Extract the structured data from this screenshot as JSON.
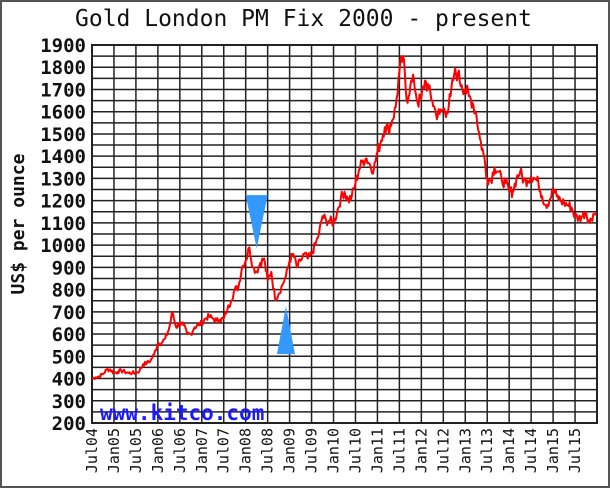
{
  "chart_data": {
    "type": "line",
    "title": "Gold London PM Fix 2000 - present",
    "ylabel": "US$ per ounce",
    "xlabel": "",
    "ylim": [
      200,
      1900
    ],
    "yticks": [
      1900,
      1800,
      1700,
      1600,
      1500,
      1400,
      1300,
      1200,
      1100,
      1000,
      900,
      800,
      700,
      600,
      500,
      400,
      300,
      200
    ],
    "xtick_labels": [
      "Jul04",
      "Jan05",
      "Jul05",
      "Jan06",
      "Jul06",
      "Jan07",
      "Jul07",
      "Jan08",
      "Jul08",
      "Jan09",
      "Jul09",
      "Jan10",
      "Jul10",
      "Jan11",
      "Jul11",
      "Jan12",
      "Jul12",
      "Jan13",
      "Jul13",
      "Jan14",
      "Jul14",
      "Jan15",
      "Jul15"
    ],
    "x_unit": "months since Jul 2004",
    "grid": true,
    "watermark": "www.kitco.com",
    "series": [
      {
        "name": "Gold London PM Fix",
        "color": "#ff0000",
        "points": [
          [
            0,
            400
          ],
          [
            1,
            405
          ],
          [
            2,
            410
          ],
          [
            3,
            420
          ],
          [
            4,
            440
          ],
          [
            5,
            440
          ],
          [
            6,
            425
          ],
          [
            7,
            430
          ],
          [
            8,
            435
          ],
          [
            9,
            430
          ],
          [
            10,
            425
          ],
          [
            11,
            425
          ],
          [
            12,
            425
          ],
          [
            13,
            435
          ],
          [
            14,
            465
          ],
          [
            15,
            470
          ],
          [
            16,
            480
          ],
          [
            17,
            510
          ],
          [
            18,
            560
          ],
          [
            19,
            560
          ],
          [
            20,
            580
          ],
          [
            21,
            620
          ],
          [
            22,
            700
          ],
          [
            23,
            630
          ],
          [
            24,
            650
          ],
          [
            25,
            640
          ],
          [
            26,
            600
          ],
          [
            27,
            600
          ],
          [
            28,
            630
          ],
          [
            29,
            640
          ],
          [
            30,
            650
          ],
          [
            31,
            670
          ],
          [
            32,
            680
          ],
          [
            33,
            670
          ],
          [
            34,
            660
          ],
          [
            35,
            665
          ],
          [
            36,
            670
          ],
          [
            37,
            710
          ],
          [
            38,
            750
          ],
          [
            39,
            800
          ],
          [
            40,
            810
          ],
          [
            41,
            900
          ],
          [
            42,
            930
          ],
          [
            43,
            990
          ],
          [
            44,
            900
          ],
          [
            45,
            880
          ],
          [
            46,
            920
          ],
          [
            47,
            940
          ],
          [
            48,
            840
          ],
          [
            49,
            880
          ],
          [
            50,
            760
          ],
          [
            51,
            780
          ],
          [
            52,
            820
          ],
          [
            53,
            860
          ],
          [
            54,
            930
          ],
          [
            55,
            960
          ],
          [
            56,
            900
          ],
          [
            57,
            930
          ],
          [
            58,
            960
          ],
          [
            59,
            940
          ],
          [
            60,
            960
          ],
          [
            61,
            1000
          ],
          [
            62,
            1050
          ],
          [
            63,
            1130
          ],
          [
            64,
            1110
          ],
          [
            65,
            1110
          ],
          [
            66,
            1100
          ],
          [
            67,
            1150
          ],
          [
            68,
            1210
          ],
          [
            69,
            1240
          ],
          [
            70,
            1200
          ],
          [
            71,
            1220
          ],
          [
            72,
            1280
          ],
          [
            73,
            1340
          ],
          [
            74,
            1380
          ],
          [
            75,
            1390
          ],
          [
            76,
            1360
          ],
          [
            77,
            1340
          ],
          [
            78,
            1420
          ],
          [
            79,
            1470
          ],
          [
            80,
            1530
          ],
          [
            81,
            1520
          ],
          [
            82,
            1560
          ],
          [
            83,
            1620
          ],
          [
            84,
            1780
          ],
          [
            85,
            1850
          ],
          [
            86,
            1650
          ],
          [
            87,
            1720
          ],
          [
            88,
            1740
          ],
          [
            89,
            1640
          ],
          [
            90,
            1660
          ],
          [
            91,
            1740
          ],
          [
            92,
            1700
          ],
          [
            93,
            1650
          ],
          [
            94,
            1590
          ],
          [
            95,
            1590
          ],
          [
            96,
            1610
          ],
          [
            97,
            1600
          ],
          [
            98,
            1670
          ],
          [
            99,
            1770
          ],
          [
            100,
            1770
          ],
          [
            101,
            1720
          ],
          [
            102,
            1700
          ],
          [
            103,
            1670
          ],
          [
            104,
            1640
          ],
          [
            105,
            1590
          ],
          [
            106,
            1480
          ],
          [
            107,
            1410
          ],
          [
            108,
            1300
          ],
          [
            109,
            1290
          ],
          [
            110,
            1350
          ],
          [
            111,
            1330
          ],
          [
            112,
            1290
          ],
          [
            113,
            1280
          ],
          [
            114,
            1240
          ],
          [
            115,
            1240
          ],
          [
            116,
            1300
          ],
          [
            117,
            1330
          ],
          [
            118,
            1290
          ],
          [
            119,
            1290
          ],
          [
            120,
            1310
          ],
          [
            121,
            1300
          ],
          [
            122,
            1280
          ],
          [
            123,
            1220
          ],
          [
            124,
            1180
          ],
          [
            125,
            1200
          ],
          [
            126,
            1250
          ],
          [
            127,
            1220
          ],
          [
            128,
            1200
          ],
          [
            129,
            1190
          ],
          [
            130,
            1180
          ],
          [
            131,
            1170
          ],
          [
            132,
            1130
          ],
          [
            133,
            1120
          ],
          [
            134,
            1130
          ],
          [
            135,
            1150
          ],
          [
            136,
            1100
          ],
          [
            137,
            1140
          ],
          [
            138,
            1140
          ]
        ]
      }
    ],
    "annotations": [
      {
        "type": "triangle-down",
        "color": "#3399ff",
        "x_month": 45,
        "value_top": 1225,
        "value_tip": 985
      },
      {
        "type": "triangle-up",
        "color": "#3399ff",
        "x_month": 53,
        "value_tip": 725,
        "value_base": 510
      }
    ]
  }
}
